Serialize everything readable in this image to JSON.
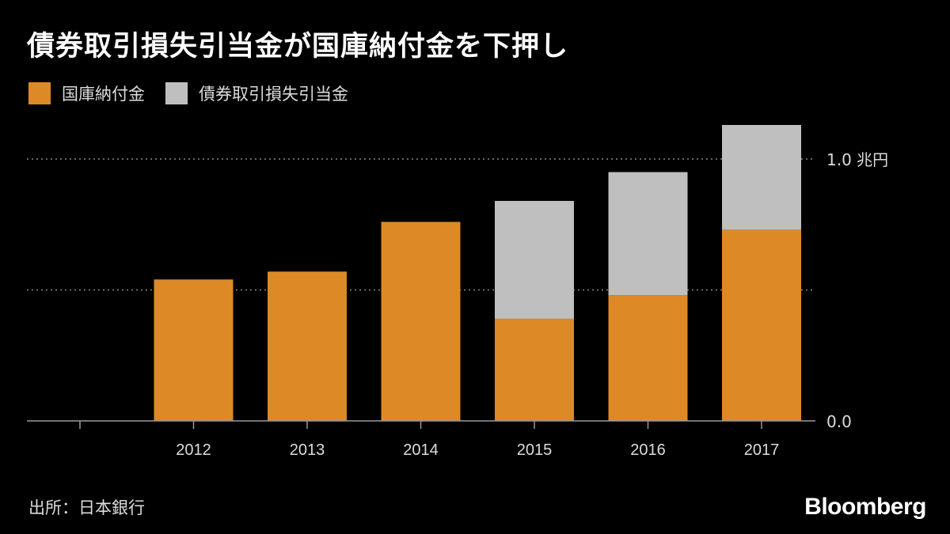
{
  "title": "債券取引損失引当金が国庫納付金を下押し",
  "source": "出所：日本銀行",
  "brand": "Bloomberg",
  "colors": {
    "background": "#000000",
    "orange": "#dd8926",
    "gray": "#bfbfbf",
    "grid": "#8a8a8a",
    "axis": "#9a9a9a",
    "text": "#dcdcdc"
  },
  "chart_data": {
    "type": "bar",
    "stacked": true,
    "title": "債券取引損失引当金が国庫納付金を下押し",
    "categories": [
      "",
      "2012",
      "2013",
      "2014",
      "2015",
      "2016",
      "2017"
    ],
    "series": [
      {
        "name": "国庫納付金",
        "values": [
          null,
          0.54,
          0.57,
          0.76,
          0.39,
          0.48,
          0.73
        ]
      },
      {
        "name": "債券取引損失引当金",
        "values": [
          null,
          0.0,
          0.0,
          0.0,
          0.45,
          0.47,
          0.4
        ]
      }
    ],
    "y_ticks": [
      {
        "value": 0.0,
        "label": "0.0"
      },
      {
        "value": 0.5,
        "label": ""
      },
      {
        "value": 1.0,
        "label": "1.0 兆円"
      }
    ],
    "ylim": [
      0,
      1.0
    ],
    "grid": true,
    "legend": "top-left",
    "xlabel": "",
    "ylabel": ""
  }
}
